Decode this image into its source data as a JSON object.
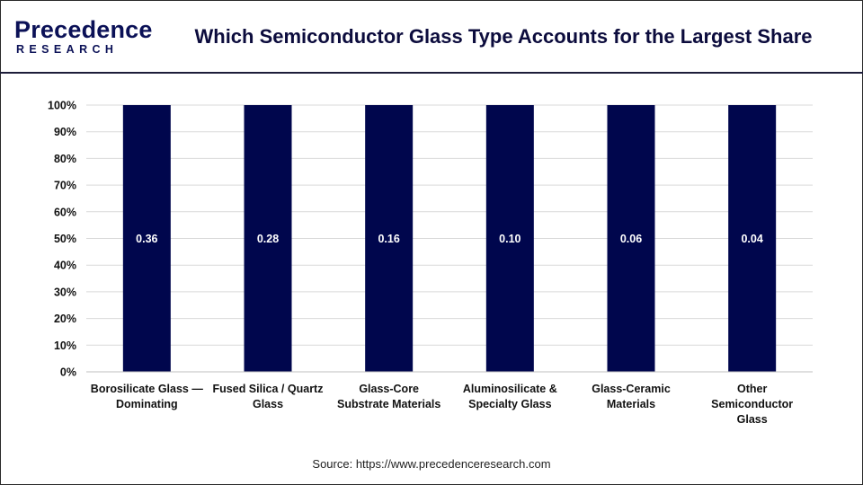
{
  "header": {
    "logo_main": "Precedence",
    "logo_sub": "RESEARCH",
    "title": "Which Semiconductor Glass Type Accounts for the Largest Share"
  },
  "footer": {
    "source": "Source: https://www.precedenceresearch.com"
  },
  "colors": {
    "bar": "#00064d",
    "brand": "#0b1157",
    "grid": "#d9d9d9"
  },
  "chart_data": {
    "type": "bar",
    "categories": [
      [
        "Borosilicate Glass —",
        "Dominating"
      ],
      [
        "Fused Silica / Quartz",
        "Glass"
      ],
      [
        "Glass-Core",
        "Substrate Materials"
      ],
      [
        "Aluminosilicate &",
        "Specialty Glass"
      ],
      [
        "Glass-Ceramic",
        "Materials"
      ],
      [
        "Other",
        "Semiconductor",
        "Glass"
      ]
    ],
    "values": [
      0.36,
      0.28,
      0.16,
      0.1,
      0.06,
      0.04
    ],
    "data_labels": [
      "0.36",
      "0.28",
      "0.16",
      "0.10",
      "0.06",
      "0.04"
    ],
    "stacked_percent": true,
    "y_ticks": [
      "0%",
      "10%",
      "20%",
      "30%",
      "40%",
      "50%",
      "60%",
      "70%",
      "80%",
      "90%",
      "100%"
    ],
    "ylim": [
      0,
      1
    ],
    "grid": true,
    "legend": "none"
  }
}
